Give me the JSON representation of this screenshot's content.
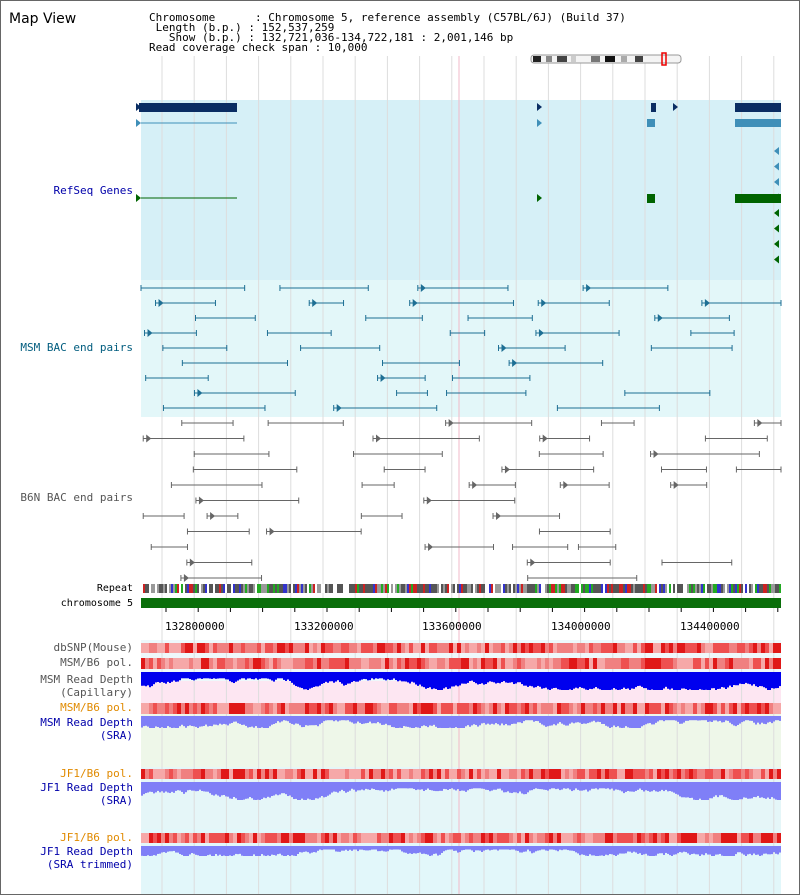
{
  "header": {
    "title": "Map View",
    "info_lines": [
      "Chromosome      : Chromosome 5, reference assembly (C57BL/6J) (Build 37)",
      " Length (b.p.) : 152,537,259",
      "   Show (b.p.) : 132,721,036-134,722,181 : 2,001,146 bp",
      "Read coverage check span : 10,000"
    ]
  },
  "tracks": {
    "refseq": "RefSeq Genes",
    "msm_bac": "MSM BAC end pairs",
    "b6n_bac": "B6N BAC end pairs",
    "repeat": "Repeat",
    "chromosome": "chromosome 5",
    "dbsnp": "dbSNP(Mouse)",
    "msm_pol": "MSM/B6 pol.",
    "msm_depth_cap_1": "MSM Read Depth",
    "msm_depth_cap_2": "(Capillary)",
    "msm_pol_2": "MSM/B6 pol.",
    "msm_depth_sra_1": "MSM Read Depth",
    "msm_depth_sra_2": "(SRA)",
    "jf1_pol": "JF1/B6 pol.",
    "jf1_depth_1": "JF1 Read Depth",
    "jf1_depth_2": "(SRA)",
    "jf1_pol_2": "JF1/B6 pol.",
    "jf1_trim_1": "JF1 Read Depth",
    "jf1_trim_2": "(SRA trimmed)"
  },
  "axis": {
    "ticks": [
      "132800000",
      "133200000",
      "133600000",
      "134000000",
      "134400000"
    ]
  },
  "colors": {
    "refseq_bg": "#d6f0f7",
    "msm_bg": "#e3f7f9",
    "gene_dark": "#0a2d63",
    "gene_mid": "#3f8fb8",
    "gene_green": "#006400",
    "chromosome": "#0a6e0a",
    "depth_blue": "#0000ee",
    "depth_light": "#7f7ff7"
  }
}
